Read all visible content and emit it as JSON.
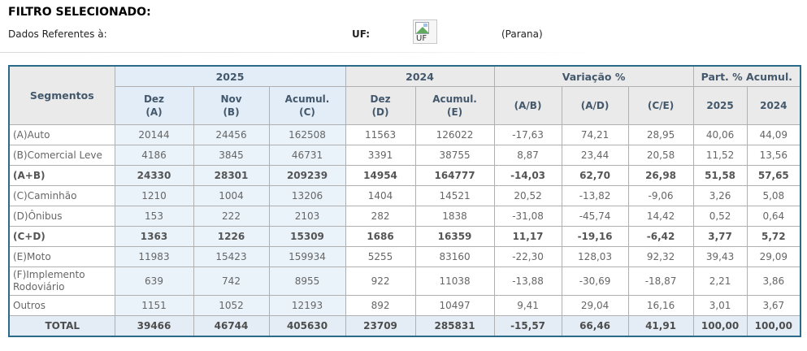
{
  "filter": {
    "title": "FILTRO SELECIONADO:",
    "dados_label": "Dados Referentes à:",
    "uf_label": "UF:",
    "uf_icon_alt": "UF",
    "uf_value": "(Parana)"
  },
  "colors": {
    "table_border": "#2b6a88",
    "header_gray": "#eaeaea",
    "header_blue": "#e2edf8",
    "cell_blue": "#eaf2fa",
    "total_row_blue": "#e4edf6",
    "grid_line": "#b0b0b0"
  },
  "table": {
    "col_groups": {
      "segmentos": "Segmentos",
      "y2025": "2025",
      "y2024": "2024",
      "variacao": "Variação %",
      "part": "Part. % Acumul."
    },
    "sub_headers": [
      "Dez\n(A)",
      "Nov\n(B)",
      "Acumul.\n(C)",
      "Dez\n(D)",
      "Acumul.\n(E)",
      "(A/B)",
      "(A/D)",
      "(C/E)",
      "2025",
      "2024"
    ],
    "rows": [
      {
        "label": "(A)Auto",
        "bold": false,
        "total": false,
        "values": [
          "20144",
          "24456",
          "162508",
          "11563",
          "126022",
          "-17,63",
          "74,21",
          "28,95",
          "40,06",
          "44,09"
        ]
      },
      {
        "label": "(B)Comercial Leve",
        "bold": false,
        "total": false,
        "values": [
          "4186",
          "3845",
          "46731",
          "3391",
          "38755",
          "8,87",
          "23,44",
          "20,58",
          "11,52",
          "13,56"
        ]
      },
      {
        "label": "(A+B)",
        "bold": true,
        "total": false,
        "values": [
          "24330",
          "28301",
          "209239",
          "14954",
          "164777",
          "-14,03",
          "62,70",
          "26,98",
          "51,58",
          "57,65"
        ]
      },
      {
        "label": "(C)Caminhão",
        "bold": false,
        "total": false,
        "values": [
          "1210",
          "1004",
          "13206",
          "1404",
          "14521",
          "20,52",
          "-13,82",
          "-9,06",
          "3,26",
          "5,08"
        ]
      },
      {
        "label": "(D)Ônibus",
        "bold": false,
        "total": false,
        "values": [
          "153",
          "222",
          "2103",
          "282",
          "1838",
          "-31,08",
          "-45,74",
          "14,42",
          "0,52",
          "0,64"
        ]
      },
      {
        "label": "(C+D)",
        "bold": true,
        "total": false,
        "values": [
          "1363",
          "1226",
          "15309",
          "1686",
          "16359",
          "11,17",
          "-19,16",
          "-6,42",
          "3,77",
          "5,72"
        ]
      },
      {
        "label": "(E)Moto",
        "bold": false,
        "total": false,
        "values": [
          "11983",
          "15423",
          "159934",
          "5255",
          "83160",
          "-22,30",
          "128,03",
          "92,32",
          "39,43",
          "29,09"
        ]
      },
      {
        "label": "(F)Implemento Rodoviário",
        "bold": false,
        "total": false,
        "values": [
          "639",
          "742",
          "8955",
          "922",
          "11038",
          "-13,88",
          "-30,69",
          "-18,87",
          "2,21",
          "3,86"
        ]
      },
      {
        "label": "Outros",
        "bold": false,
        "total": false,
        "values": [
          "1151",
          "1052",
          "12193",
          "892",
          "10497",
          "9,41",
          "29,04",
          "16,16",
          "3,01",
          "3,67"
        ]
      },
      {
        "label": "TOTAL",
        "bold": true,
        "total": true,
        "values": [
          "39466",
          "46744",
          "405630",
          "23709",
          "285831",
          "-15,57",
          "66,46",
          "41,91",
          "100,00",
          "100,00"
        ]
      }
    ]
  }
}
